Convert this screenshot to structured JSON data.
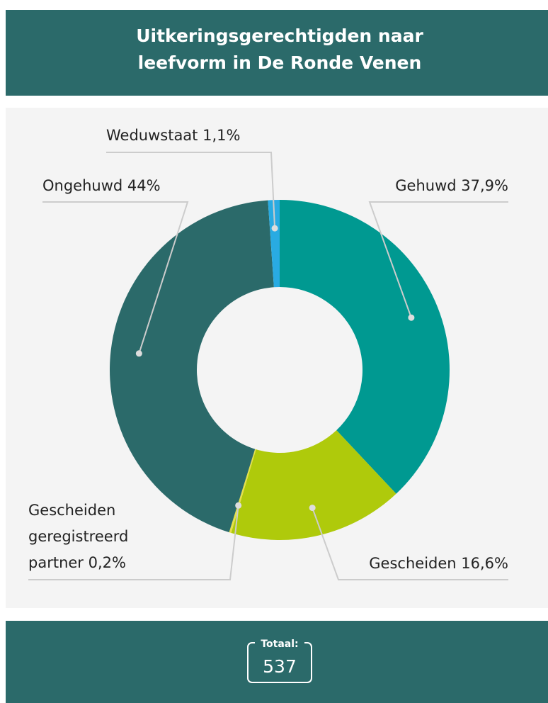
{
  "chart_data": {
    "type": "donut",
    "title": "Uitkeringsgerechtigden naar leefvorm in De Ronde Venen",
    "categories": [
      "Gehuwd",
      "Gescheiden",
      "Gescheiden geregistreerd partner",
      "Ongehuwd",
      "Weduwstaat"
    ],
    "values": [
      37.9,
      16.6,
      0.2,
      44,
      1.1
    ],
    "value_labels": [
      "37,9%",
      "16,6%",
      "0,2%",
      "44%",
      "1,1%"
    ],
    "colors": [
      "#009991",
      "#afca0b",
      "#e6e04a",
      "#2b6a6a",
      "#29abe2"
    ],
    "total_label": "Totaal:",
    "total": 537
  }
}
